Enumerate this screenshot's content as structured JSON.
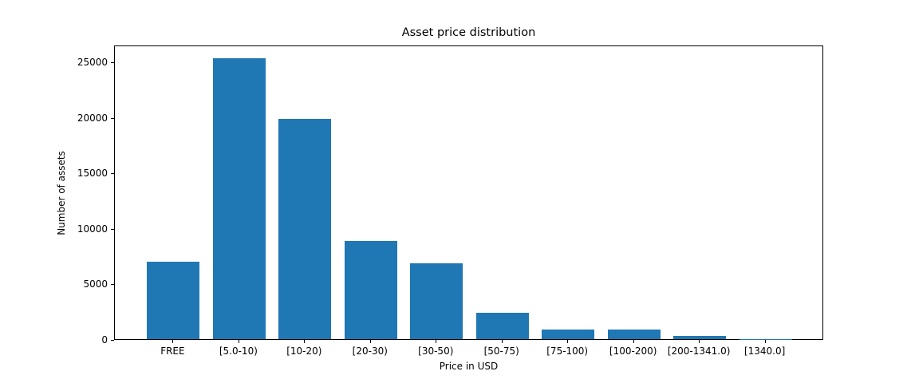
{
  "figure": {
    "background": "#ffffff"
  },
  "chart_data": {
    "type": "bar",
    "title": "Asset price distribution",
    "xlabel": "Price in USD",
    "ylabel": "Number of assets",
    "categories": [
      "FREE",
      "[5.0-10)",
      "[10-20)",
      "[20-30)",
      "[30-50)",
      "[50-75)",
      "[75-100)",
      "[100-200)",
      "[200-1341.0)",
      "[1340.0]"
    ],
    "values": [
      7000,
      25250,
      19850,
      8850,
      6850,
      2400,
      850,
      850,
      300,
      20
    ],
    "ylim": [
      0,
      26500
    ],
    "yticks": [
      0,
      5000,
      10000,
      15000,
      20000,
      25000
    ],
    "bar_color": "#1f77b4",
    "grid": false,
    "legend_position": "none"
  }
}
